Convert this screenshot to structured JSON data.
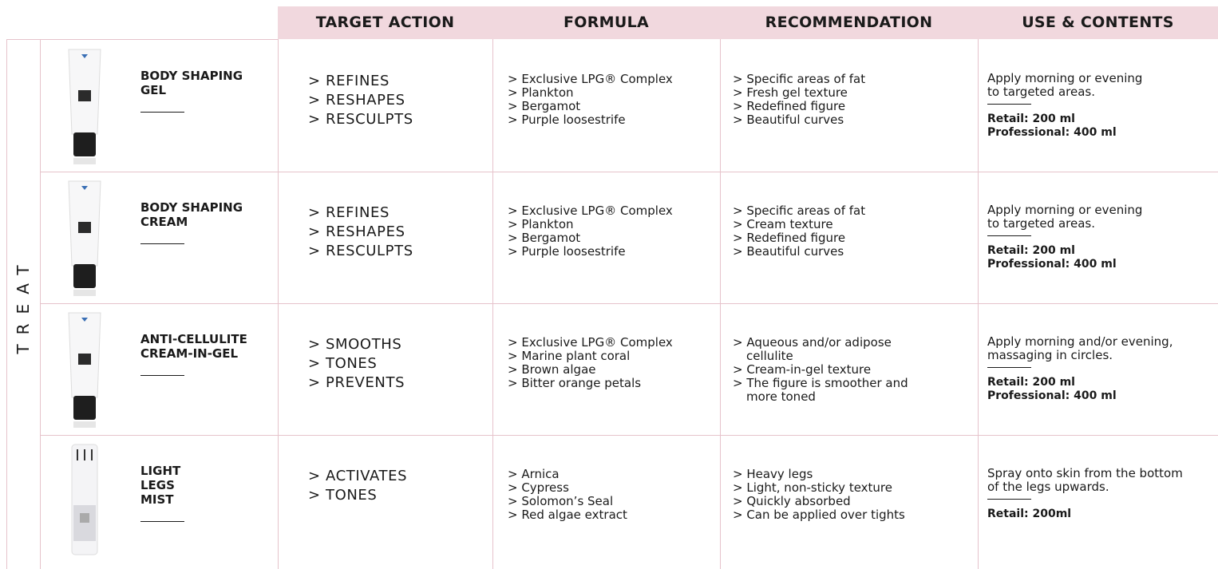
{
  "header": {
    "columns": [
      "TARGET ACTION",
      "FORMULA",
      "RECOMMENDATION",
      "USE & CONTENTS"
    ]
  },
  "section": "TREAT",
  "rows": [
    {
      "name": [
        "BODY SHAPING",
        "GEL"
      ],
      "actions": [
        "> REFINES",
        "> RESHAPES",
        "> RESCULPTS"
      ],
      "formula": [
        "> Exclusive LPG® Complex",
        "> Plankton",
        "> Bergamot",
        "> Purple loosestrife"
      ],
      "recommendation": [
        "> Specific areas of fat",
        "> Fresh gel texture",
        "> Redefined figure",
        "> Beautiful curves"
      ],
      "use": [
        "Apply morning or evening",
        "to targeted areas."
      ],
      "contents": [
        "Retail: 200 ml",
        "Professional: 400 ml"
      ]
    },
    {
      "name": [
        "BODY SHAPING",
        "CREAM"
      ],
      "actions": [
        "> REFINES",
        "> RESHAPES",
        "> RESCULPTS"
      ],
      "formula": [
        "> Exclusive LPG® Complex",
        "> Plankton",
        "> Bergamot",
        "> Purple loosestrife"
      ],
      "recommendation": [
        "> Specific areas of fat",
        "> Cream texture",
        "> Redefined figure",
        "> Beautiful curves"
      ],
      "use": [
        "Apply morning or evening",
        "to targeted areas."
      ],
      "contents": [
        "Retail: 200 ml",
        "Professional: 400 ml"
      ]
    },
    {
      "name": [
        "ANTI-CELLULITE",
        "CREAM-IN-GEL"
      ],
      "actions": [
        "> SMOOTHS",
        "> TONES",
        "> PREVENTS"
      ],
      "formula": [
        "> Exclusive LPG® Complex",
        "> Marine plant coral",
        "> Brown algae",
        "> Bitter orange petals"
      ],
      "recommendation": [
        "> Aqueous and/or adipose cellulite",
        "> Cream-in-gel texture",
        "> The figure is smoother and more toned"
      ],
      "use": [
        "Apply morning and/or evening,",
        "massaging in circles."
      ],
      "contents": [
        "Retail: 200 ml",
        "Professional: 400 ml"
      ]
    },
    {
      "name": [
        "LIGHT",
        "LEGS",
        "MIST"
      ],
      "actions": [
        "> ACTIVATES",
        "> TONES"
      ],
      "formula": [
        "> Arnica",
        "> Cypress",
        "> Solomon’s Seal",
        "> Red algae extract"
      ],
      "recommendation": [
        "> Heavy legs",
        "> Light, non-sticky texture",
        "> Quickly absorbed",
        "> Can be applied over tights"
      ],
      "use": [
        "Spray onto skin from the bottom",
        "of the legs upwards."
      ],
      "contents": [
        "Retail: 200ml"
      ]
    }
  ]
}
